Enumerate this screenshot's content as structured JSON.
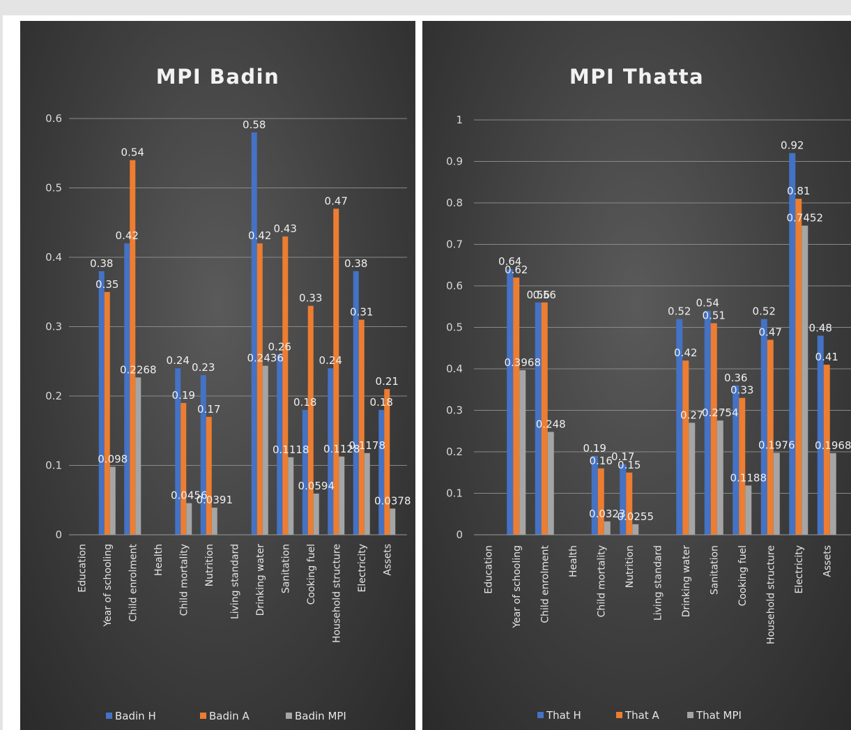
{
  "chart_data": [
    {
      "type": "bar",
      "title": "MPI Badin",
      "ylim": [
        0,
        0.6
      ],
      "yticks": [
        "0",
        "0.1",
        "0.2",
        "0.3",
        "0.4",
        "0.5",
        "0.6"
      ],
      "grid": true,
      "legend_position": "bottom",
      "categories": [
        "Education",
        "Year of schooling",
        "Child enrolment",
        "Health",
        "Child mortality",
        "Nutrition",
        "Living standard",
        "Drinking water",
        "Sanitation",
        "Cooking fuel",
        "Household structure",
        "Electricity",
        "Assets"
      ],
      "series": [
        {
          "name": "Badin H",
          "color": "#4472c4",
          "values": [
            null,
            0.38,
            0.42,
            null,
            0.24,
            0.23,
            null,
            0.58,
            0.26,
            0.18,
            0.24,
            0.38,
            0.18
          ],
          "labels": [
            "",
            "0.38",
            "0.42",
            "",
            "0.24",
            "0.23",
            "",
            "0.58",
            "0.26",
            "0.18",
            "0.24",
            "0.38",
            "0.18"
          ]
        },
        {
          "name": "Badin A",
          "color": "#ed7d31",
          "values": [
            null,
            0.35,
            0.54,
            null,
            0.19,
            0.17,
            null,
            0.42,
            0.43,
            0.33,
            0.47,
            0.31,
            0.21
          ],
          "labels": [
            "",
            "0.35",
            "0.54",
            "",
            "0.19",
            "0.17",
            "",
            "0.42",
            "0.43",
            "0.33",
            "0.47",
            "0.31",
            "0.21"
          ]
        },
        {
          "name": "Badin MPI",
          "color": "#a5a5a5",
          "values": [
            null,
            0.098,
            0.2268,
            null,
            0.0456,
            0.0391,
            null,
            0.2436,
            0.1118,
            0.0594,
            0.1128,
            0.1178,
            0.0378
          ],
          "labels": [
            "",
            "0.098",
            "0.2268",
            "",
            "0.0456",
            "0.0391",
            "",
            "0.2436",
            "0.1118",
            "0.0594",
            "0.1128",
            "0.1178",
            "0.0378"
          ]
        }
      ]
    },
    {
      "type": "bar",
      "title": "MPI Thatta",
      "ylim": [
        0,
        1
      ],
      "yticks": [
        "0",
        "0.1",
        "0.2",
        "0.3",
        "0.4",
        "0.5",
        "0.6",
        "0.7",
        "0.8",
        "0.9",
        "1"
      ],
      "grid": true,
      "legend_position": "bottom",
      "categories": [
        "Education",
        "Year of schooling",
        "Child enrolment",
        "Health",
        "Child mortality",
        "Nutrition",
        "Living standard",
        "Drinking water",
        "Sanitation",
        "Cooking fuel",
        "Household structure",
        "Electricity",
        "Assets"
      ],
      "series": [
        {
          "name": "That H",
          "color": "#4472c4",
          "values": [
            null,
            0.64,
            0.56,
            null,
            0.19,
            0.17,
            null,
            0.52,
            0.54,
            0.36,
            0.52,
            0.92,
            0.48
          ],
          "labels": [
            "",
            "0.64",
            "0.56",
            "",
            "0.19",
            "0.17",
            "",
            "0.52",
            "0.54",
            "0.36",
            "0.52",
            "0.92",
            "0.48"
          ]
        },
        {
          "name": "That A",
          "color": "#ed7d31",
          "values": [
            null,
            0.62,
            0.56,
            null,
            0.16,
            0.15,
            null,
            0.42,
            0.51,
            0.33,
            0.47,
            0.81,
            0.41
          ],
          "labels": [
            "",
            "0.62",
            "0.56",
            "",
            "0.16",
            "0.15",
            "",
            "0.42",
            "0.51",
            "0.33",
            "0.47",
            "0.81",
            "0.41"
          ]
        },
        {
          "name": "That MPI",
          "color": "#a5a5a5",
          "values": [
            null,
            0.3968,
            0.248,
            null,
            0.0323,
            0.0255,
            null,
            0.27,
            0.2754,
            0.1188,
            0.1976,
            0.7452,
            0.1968
          ],
          "labels": [
            "",
            "0.3968",
            "0.248",
            "",
            "0.0323",
            "0.0255",
            "",
            "0.27",
            "0.2754",
            "0.1188",
            "0.1976",
            "0.7452",
            "0.1968"
          ]
        }
      ]
    }
  ]
}
